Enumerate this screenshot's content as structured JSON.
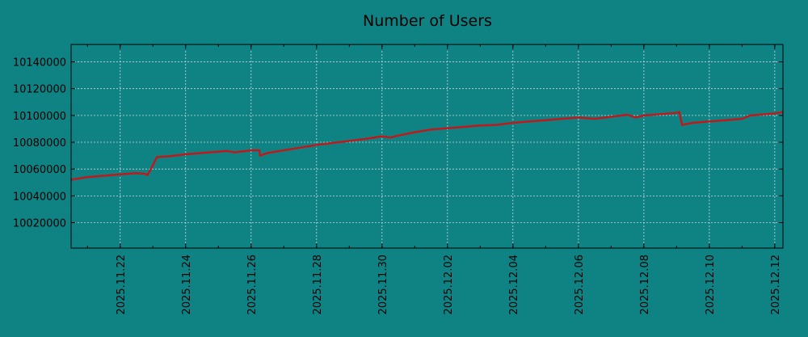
{
  "chart_data": {
    "type": "line",
    "title": "Number of Users",
    "xlabel": "",
    "ylabel": "",
    "grid": true,
    "line_color": "#c0191c",
    "background": "#0f8384",
    "xlim": [
      "2025-11-20T12:00",
      "2025-12-12T06:00"
    ],
    "ylim": [
      10001000,
      10153000
    ],
    "yticks": [
      10020000,
      10040000,
      10060000,
      10080000,
      10100000,
      10120000,
      10140000
    ],
    "xticks": [
      "2025.11.22",
      "2025.11.24",
      "2025.11.26",
      "2025.11.28",
      "2025.11.30",
      "2025.12.02",
      "2025.12.04",
      "2025.12.06",
      "2025.12.08",
      "2025.12.10",
      "2025.12.12"
    ],
    "series": [
      {
        "x": [
          "2025-11-20T12:00",
          "2025-11-21T00:00",
          "2025-11-21T12:00",
          "2025-11-22T00:00",
          "2025-11-22T12:00",
          "2025-11-22T18:00",
          "2025-11-22T20:00",
          "2025-11-22T22:00",
          "2025-11-23T03:00",
          "2025-11-23T12:00",
          "2025-11-24T00:00",
          "2025-11-24T12:00",
          "2025-11-25T00:00",
          "2025-11-25T06:00",
          "2025-11-25T12:00",
          "2025-11-26T00:00",
          "2025-11-26T06:00",
          "2025-11-26T06:30",
          "2025-11-26T12:00",
          "2025-11-27T00:00",
          "2025-11-27T12:00",
          "2025-11-28T00:00",
          "2025-11-28T12:00",
          "2025-11-29T00:00",
          "2025-11-29T12:00",
          "2025-11-30T00:00",
          "2025-11-30T06:00",
          "2025-11-30T12:00",
          "2025-12-01T00:00",
          "2025-12-01T12:00",
          "2025-12-02T00:00",
          "2025-12-02T12:00",
          "2025-12-03T00:00",
          "2025-12-03T12:00",
          "2025-12-04T00:00",
          "2025-12-04T12:00",
          "2025-12-05T00:00",
          "2025-12-05T12:00",
          "2025-12-06T00:00",
          "2025-12-06T06:00",
          "2025-12-06T12:00",
          "2025-12-07T00:00",
          "2025-12-07T12:00",
          "2025-12-07T18:00",
          "2025-12-08T00:00",
          "2025-12-08T12:00",
          "2025-12-09T00:00",
          "2025-12-09T02:00",
          "2025-12-09T04:00",
          "2025-12-09T12:00",
          "2025-12-10T00:00",
          "2025-12-10T12:00",
          "2025-12-11T00:00",
          "2025-12-11T06:00",
          "2025-12-11T12:00",
          "2025-12-12T00:00",
          "2025-12-12T06:00"
        ],
        "y": [
          10052000,
          10054000,
          10055000,
          10056000,
          10057000,
          10056500,
          10055500,
          10059000,
          10069000,
          10069500,
          10071000,
          10072000,
          10073000,
          10073500,
          10072500,
          10074000,
          10074000,
          10070000,
          10072000,
          10074000,
          10076000,
          10078000,
          10079500,
          10081000,
          10082500,
          10084500,
          10083500,
          10085000,
          10087500,
          10089500,
          10090500,
          10091500,
          10092500,
          10093000,
          10094500,
          10095500,
          10096500,
          10097500,
          10098500,
          10098000,
          10097500,
          10099000,
          10100500,
          10098500,
          10100000,
          10101000,
          10102000,
          10102500,
          10093000,
          10094500,
          10095500,
          10096500,
          10097500,
          10100000,
          10100500,
          10101500,
          10102500
        ]
      }
    ]
  }
}
